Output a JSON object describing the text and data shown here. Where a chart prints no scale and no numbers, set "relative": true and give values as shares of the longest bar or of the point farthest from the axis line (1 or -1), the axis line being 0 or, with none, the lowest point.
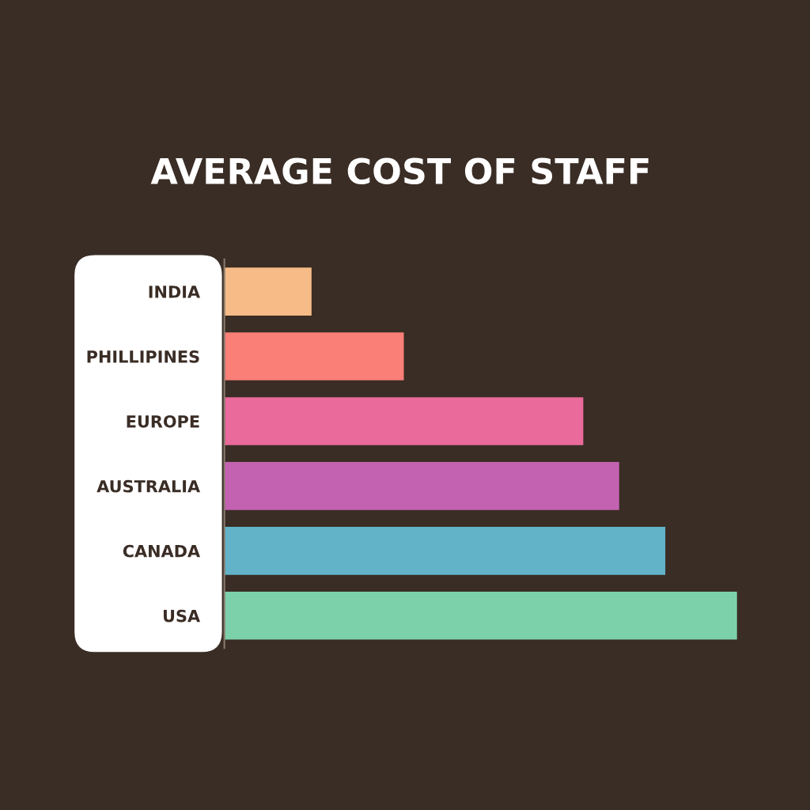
{
  "chart_data": {
    "type": "bar",
    "orientation": "horizontal",
    "relative": true,
    "title": "AVERAGE COST OF STAFF",
    "categories": [
      "INDIA",
      "PHILLIPINES",
      "EUROPE",
      "AUSTRALIA",
      "CANADA",
      "USA"
    ],
    "values": [
      0.17,
      0.35,
      0.7,
      0.77,
      0.86,
      1
    ],
    "colors": [
      "#f6bb87",
      "#f97f77",
      "#e96a9b",
      "#c462b2",
      "#62b3c8",
      "#7dd1aa"
    ],
    "grid": false,
    "legend": false
  }
}
